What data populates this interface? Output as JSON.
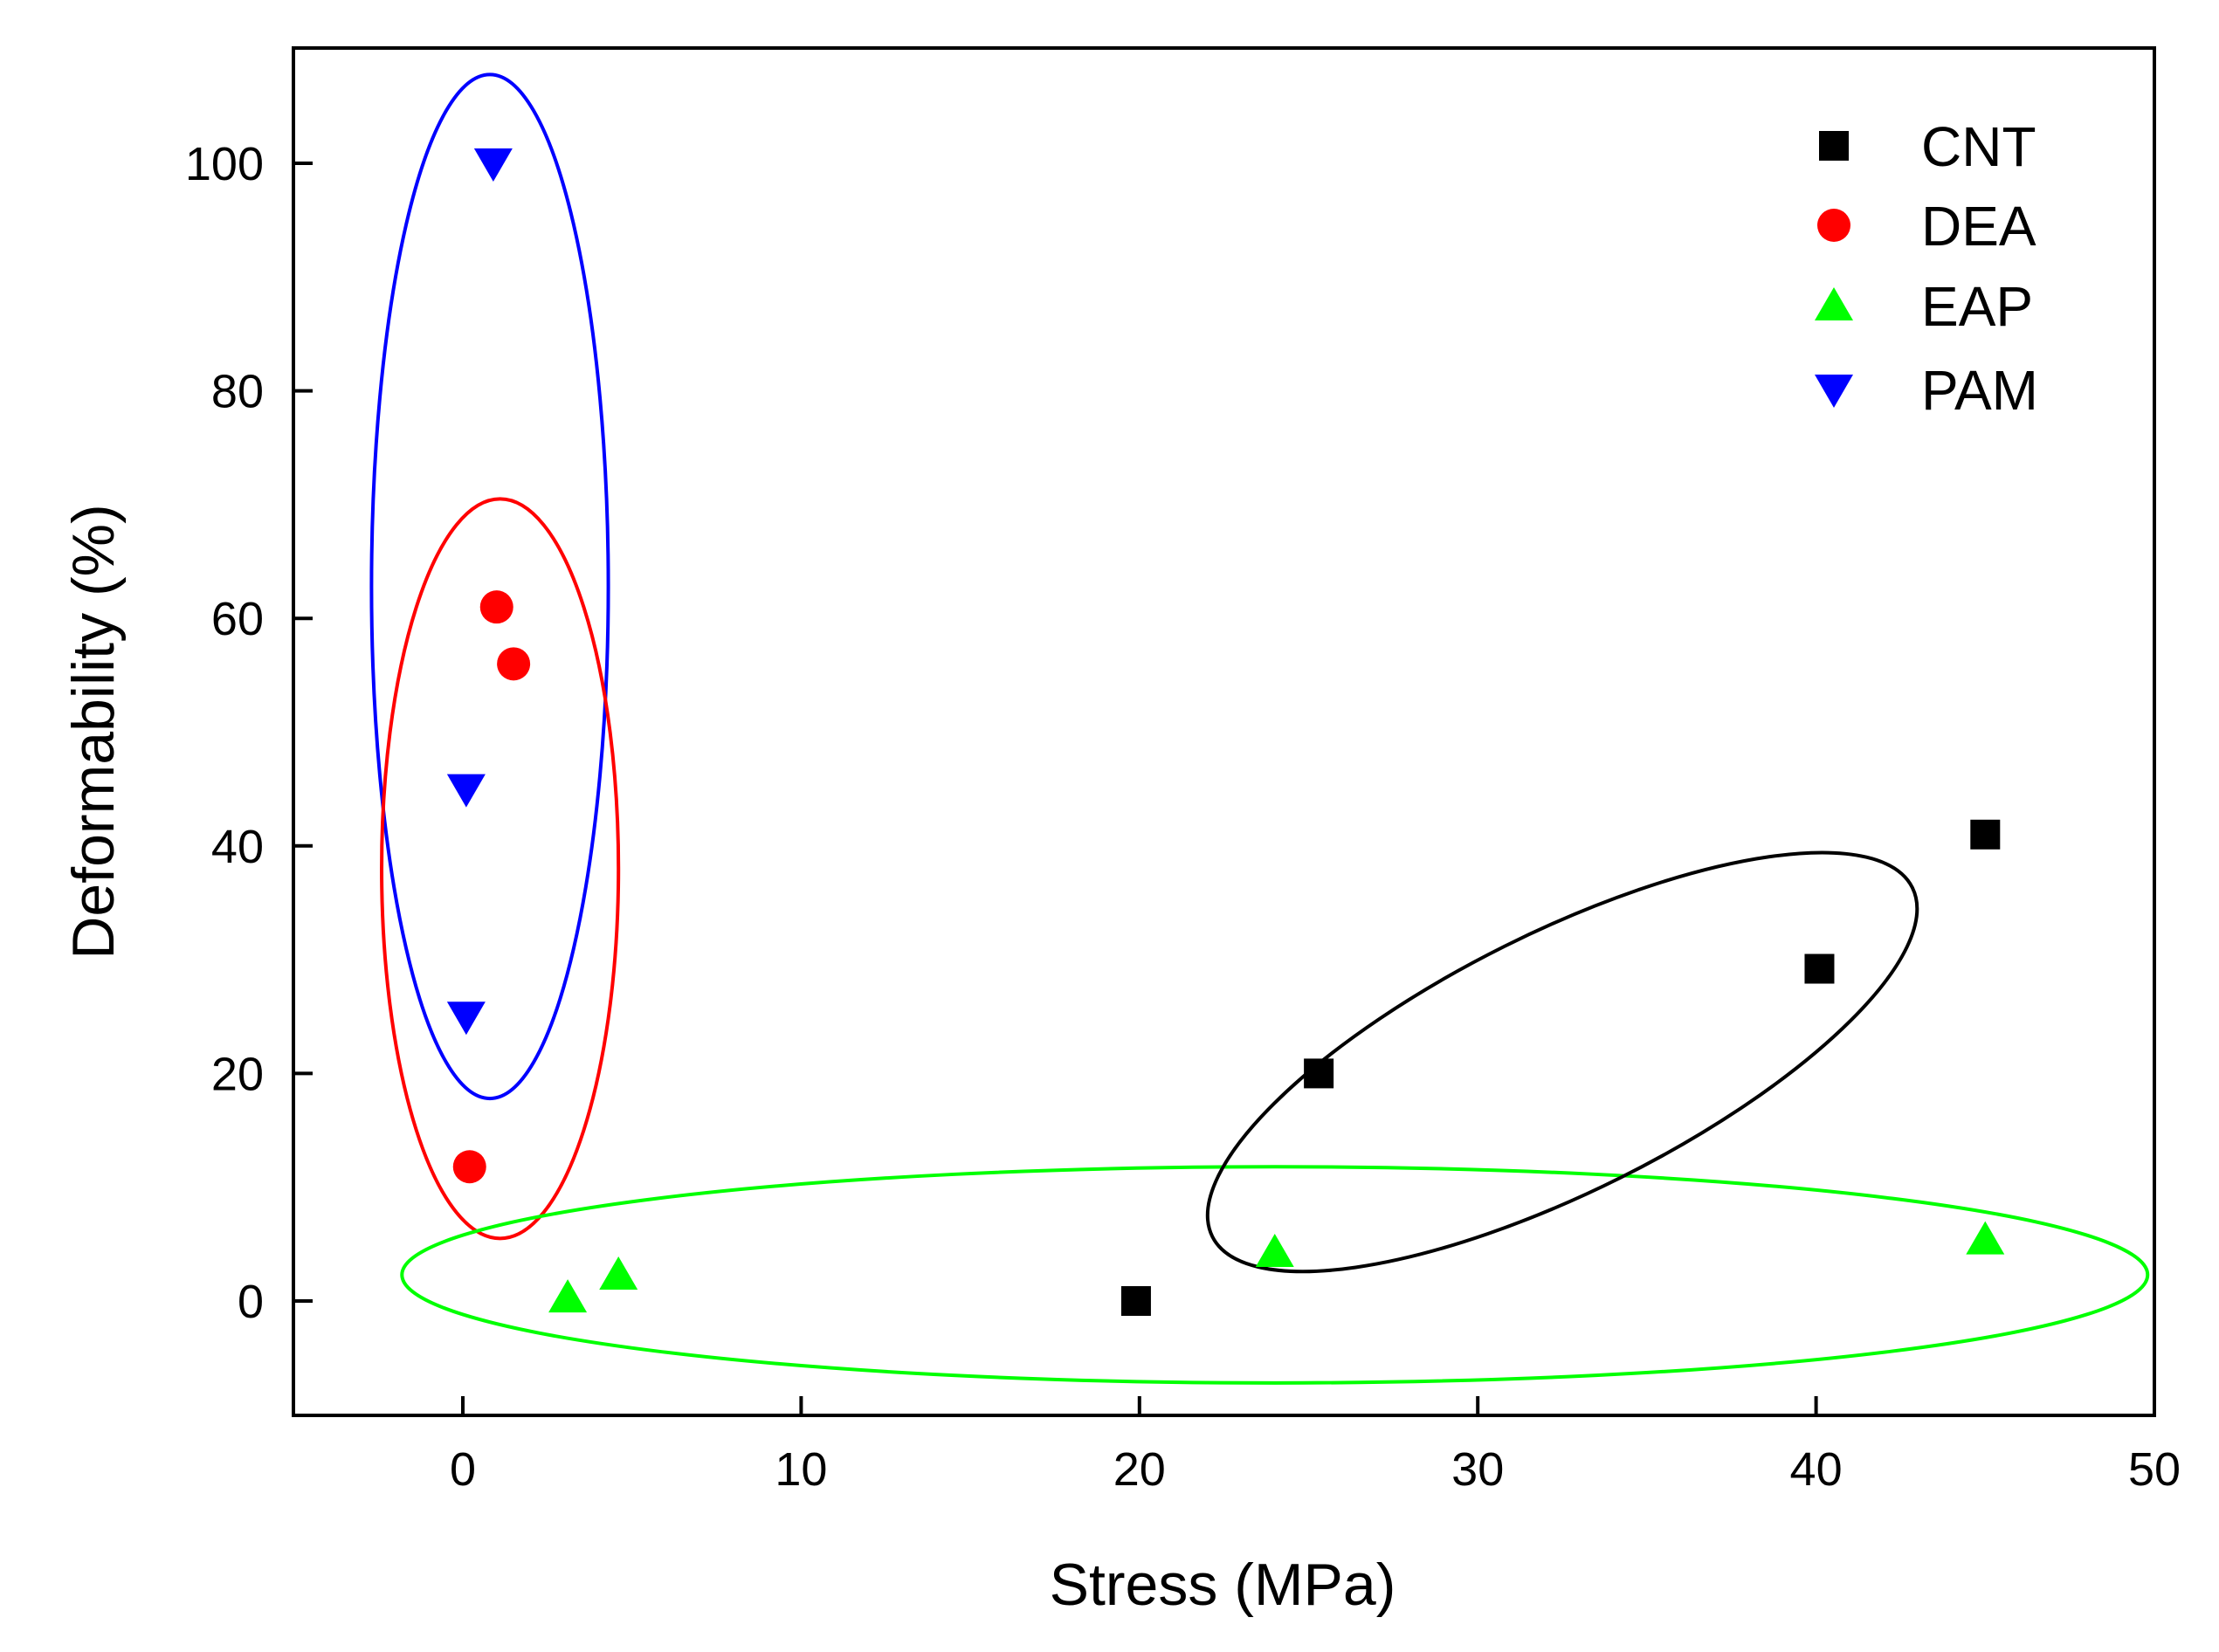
{
  "chart_data": {
    "type": "scatter",
    "title": "",
    "xlabel": "Stress (MPa)",
    "ylabel": "Deformability (%)",
    "xlim": [
      -5,
      50
    ],
    "ylim": [
      -10,
      110
    ],
    "xticks": [
      0,
      10,
      20,
      30,
      40,
      50
    ],
    "yticks": [
      0,
      20,
      40,
      60,
      80,
      100
    ],
    "xtick_labels": [
      "0",
      "10",
      "20",
      "30",
      "40",
      "50"
    ],
    "ytick_labels": [
      "0",
      "20",
      "40",
      "60",
      "80",
      "100"
    ],
    "grid": false,
    "legend_position": "top-right",
    "series": [
      {
        "name": "CNT",
        "marker": "square",
        "color": "#000000",
        "points": [
          [
            19.9,
            0
          ],
          [
            25.3,
            20
          ],
          [
            40.1,
            29.2
          ],
          [
            45.0,
            41
          ]
        ]
      },
      {
        "name": "DEA",
        "marker": "circle",
        "color": "#ff0000",
        "points": [
          [
            0.2,
            11.8
          ],
          [
            1.0,
            61
          ],
          [
            1.5,
            56
          ]
        ]
      },
      {
        "name": "EAP",
        "marker": "triangle-up",
        "color": "#00ff00",
        "points": [
          [
            3.1,
            0.3
          ],
          [
            4.6,
            2.3
          ],
          [
            24.0,
            4.3
          ],
          [
            45.0,
            5.4
          ]
        ]
      },
      {
        "name": "PAM",
        "marker": "triangle-down",
        "color": "#0000ff",
        "points": [
          [
            0.9,
            100
          ],
          [
            0.1,
            45
          ],
          [
            0.1,
            25
          ]
        ]
      }
    ],
    "cluster_ellipses": [
      {
        "series": "PAM",
        "color": "#0000ff",
        "center": [
          0.8,
          62.8
        ],
        "semi_major": 45,
        "semi_minor": 3.5,
        "angle_deg": 90
      },
      {
        "series": "DEA",
        "color": "#ff0000",
        "center": [
          1.1,
          38
        ],
        "semi_major": 32.5,
        "semi_minor": 3.5,
        "angle_deg": 90
      },
      {
        "series": "EAP",
        "color": "#00ff00",
        "center": [
          24.0,
          2.3
        ],
        "semi_major": 25.8,
        "semi_minor": 9.5,
        "angle_deg": 0
      },
      {
        "series": "CNT",
        "color": "#000000",
        "center": [
          32.5,
          21
        ],
        "semi_major": 18.5,
        "semi_minor": 4.5,
        "angle_deg": 56
      }
    ]
  }
}
